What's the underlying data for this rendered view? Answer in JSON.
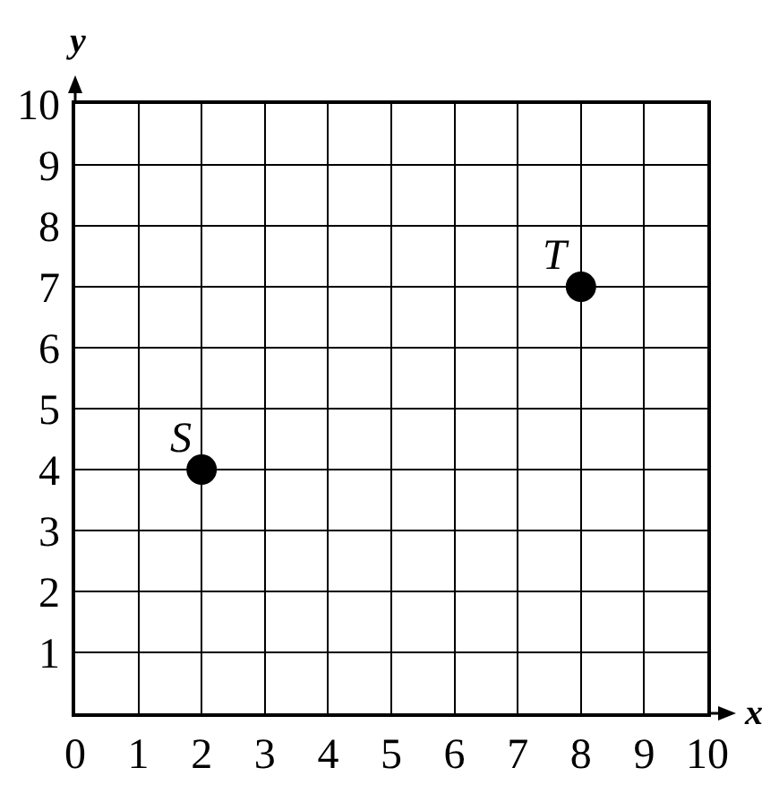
{
  "chart_data": {
    "type": "scatter",
    "xlabel": "x",
    "ylabel": "y",
    "x": [
      2,
      8
    ],
    "values": [
      4,
      7
    ],
    "color": "#000000",
    "marker": "circle",
    "xlim": [
      0,
      10
    ],
    "ylim": [
      0,
      10
    ],
    "xticks": [
      0,
      1,
      2,
      3,
      4,
      5,
      6,
      7,
      8,
      9,
      10
    ],
    "yticks": [
      1,
      2,
      3,
      4,
      5,
      6,
      7,
      8,
      9,
      10
    ],
    "grid": true,
    "annotations": [
      {
        "text": "S",
        "x": 2,
        "y": 4
      },
      {
        "text": "T",
        "x": 8,
        "y": 7
      }
    ]
  }
}
